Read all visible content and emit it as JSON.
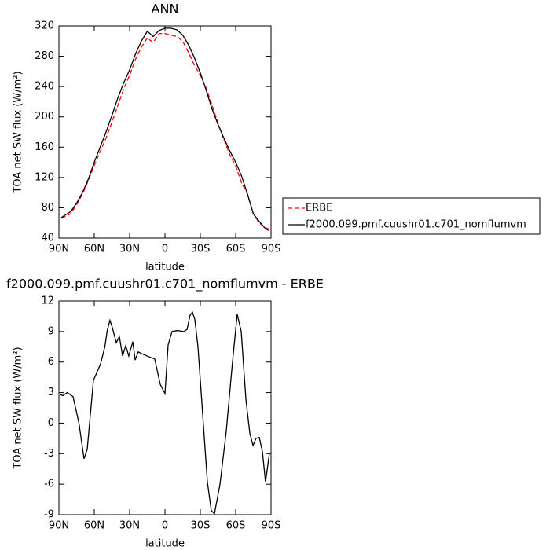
{
  "chart_data": [
    {
      "type": "line",
      "title": "ANN",
      "x_label": "latitude",
      "y_label": "TOA net SW flux (W/m²)",
      "x": [
        88,
        80,
        75,
        70,
        65,
        60,
        55,
        50,
        45,
        40,
        35,
        30,
        25,
        20,
        15,
        10,
        5,
        0,
        -5,
        -10,
        -15,
        -20,
        -25,
        -30,
        -35,
        -40,
        -45,
        -50,
        -55,
        -60,
        -65,
        -70,
        -75,
        -80,
        -85,
        -88
      ],
      "series": [
        {
          "name": "ERBE",
          "color": "#ff0000",
          "dash": "dashed",
          "values": [
            66,
            72,
            84,
            98,
            116,
            136,
            154,
            172,
            193,
            215,
            237,
            255,
            276,
            292,
            304,
            298,
            310,
            310,
            308,
            306,
            300,
            285,
            268,
            255,
            238,
            215,
            192,
            170,
            150,
            135,
            113,
            98,
            72,
            60,
            54,
            52
          ]
        },
        {
          "name": "f2000.099.pmf.cuushr01.c701_nomflumvm",
          "color": "#000000",
          "dash": "solid",
          "values": [
            67,
            75,
            86,
            100,
            118,
            140,
            160,
            180,
            202,
            225,
            245,
            262,
            283,
            300,
            313,
            306,
            314,
            317,
            317,
            315,
            308,
            295,
            278,
            258,
            235,
            210,
            190,
            172,
            155,
            140,
            122,
            98,
            72,
            62,
            53,
            50
          ]
        }
      ],
      "xlim": [
        90,
        -90
      ],
      "xticks": [
        {
          "value": 90,
          "label": "90N"
        },
        {
          "value": 60,
          "label": "60N"
        },
        {
          "value": 30,
          "label": "30N"
        },
        0,
        {
          "value": -30,
          "label": "30S"
        },
        {
          "value": -60,
          "label": "60S"
        },
        {
          "value": -90,
          "label": "90S"
        }
      ],
      "ylim": [
        40,
        320
      ],
      "yticks": [
        40,
        80,
        120,
        160,
        200,
        240,
        280,
        320
      ],
      "legend": "right"
    },
    {
      "type": "line",
      "title": "f2000.099.pmf.cuushr01.c701_nomflumvm  -  ERBE",
      "x_label": "latitude",
      "y_label": "TOA net SW flux (W/m²)",
      "x": [
        88.7,
        86.7,
        83,
        78,
        73,
        68.7,
        66,
        60.7,
        54.7,
        51,
        49,
        46.7,
        44.7,
        41.3,
        38.7,
        36,
        33.3,
        30.7,
        27.3,
        25.3,
        22.7,
        19.3,
        15.3,
        8.7,
        4,
        0,
        -2.7,
        -6,
        -10.7,
        -16,
        -18.7,
        -21.3,
        -23.3,
        -25.3,
        -28,
        -31.3,
        -36,
        -39.3,
        -42,
        -46.7,
        -52,
        -57.3,
        -61.3,
        -64.7,
        -68.7,
        -72,
        -74.7,
        -77.3,
        -80,
        -82.7,
        -85.3,
        -88.7
      ],
      "series": [
        {
          "color": "#000000",
          "dash": "solid",
          "values": [
            2.8,
            2.7,
            3.0,
            2.6,
            0,
            -3.5,
            -2.6,
            4.2,
            5.8,
            7.5,
            9.1,
            10.1,
            9.4,
            7.9,
            8.5,
            6.6,
            7.6,
            6.6,
            8.0,
            6.2,
            7.0,
            6.8,
            6.6,
            6.3,
            3.8,
            2.9,
            7.7,
            9.0,
            9.1,
            9.0,
            9.2,
            10.6,
            10.9,
            10.2,
            7.5,
            2.0,
            -5.8,
            -8.6,
            -8.9,
            -6.0,
            -0.8,
            6.0,
            10.7,
            9.0,
            2.3,
            -1.0,
            -2.2,
            -1.5,
            -1.4,
            -2.8,
            -5.8,
            -2.9
          ]
        }
      ],
      "xlim": [
        90,
        -90
      ],
      "xticks": [
        {
          "value": 90,
          "label": "90N"
        },
        {
          "value": 60,
          "label": "60N"
        },
        {
          "value": 30,
          "label": "30N"
        },
        0,
        {
          "value": -30,
          "label": "30S"
        },
        {
          "value": -60,
          "label": "60S"
        },
        {
          "value": -90,
          "label": "90S"
        }
      ],
      "ylim": [
        -9,
        12
      ],
      "yticks": [
        -9,
        -6,
        -3,
        0,
        3,
        6,
        9,
        12
      ]
    }
  ]
}
